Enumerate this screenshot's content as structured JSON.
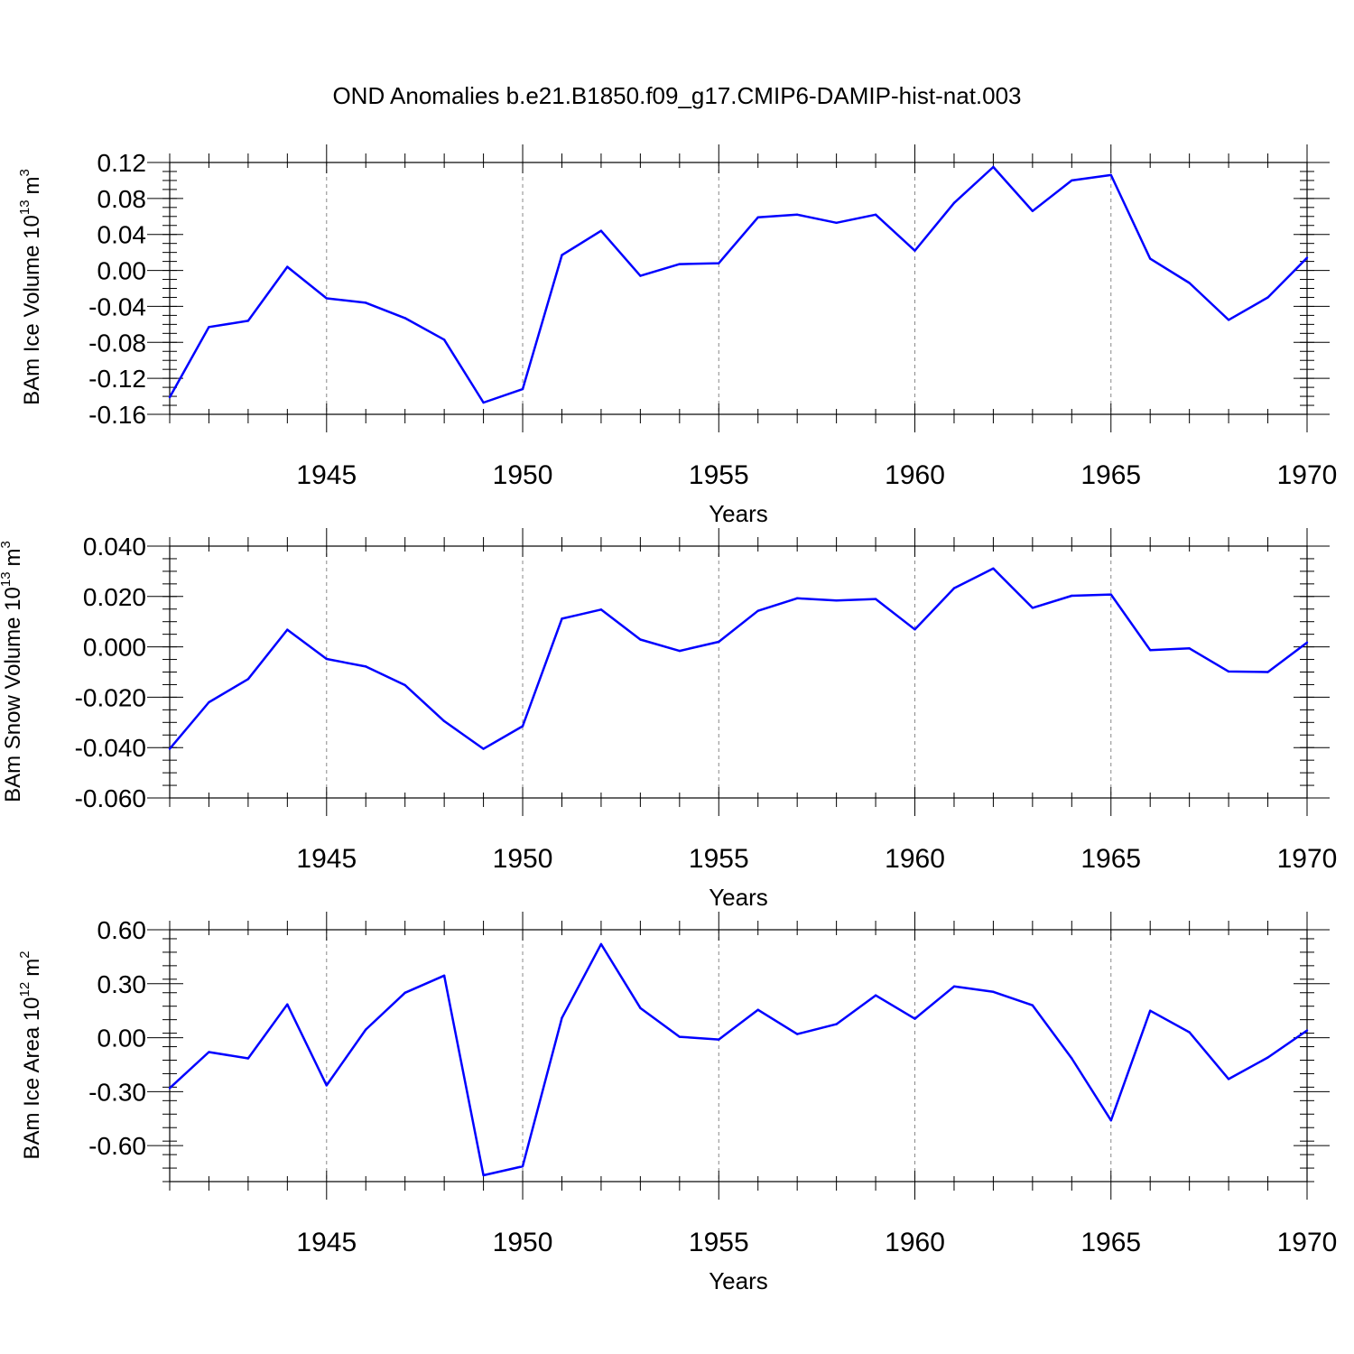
{
  "title": "OND Anomalies b.e21.B1850.f09_g17.CMIP6-DAMIP-hist-nat.003",
  "line_color": "#0000ff",
  "chart_data": [
    {
      "type": "line",
      "ylabel": "BAm Ice Volume 10",
      "ylabel_exponent": "13",
      "ylabel_unit": "m",
      "ylabel_unit_exponent": "3",
      "xlabel": "Years",
      "xlim": [
        1941,
        1970
      ],
      "ylim": [
        -0.16,
        0.12
      ],
      "yticks": [
        "0.12",
        "0.08",
        "0.04",
        "0.00",
        "-0.04",
        "-0.08",
        "-0.12",
        "-0.16"
      ],
      "xticks": [
        "1945",
        "1950",
        "1955",
        "1960",
        "1965",
        "1970"
      ],
      "x": [
        1941,
        1942,
        1943,
        1944,
        1945,
        1946,
        1947,
        1948,
        1949,
        1950,
        1951,
        1952,
        1953,
        1954,
        1955,
        1956,
        1957,
        1958,
        1959,
        1960,
        1961,
        1962,
        1963,
        1964,
        1965,
        1966,
        1967,
        1968,
        1969,
        1970
      ],
      "values": [
        -0.141,
        -0.063,
        -0.056,
        0.004,
        -0.031,
        -0.036,
        -0.053,
        -0.077,
        -0.147,
        -0.132,
        0.017,
        0.044,
        -0.006,
        0.007,
        0.008,
        0.059,
        0.062,
        0.053,
        0.062,
        0.022,
        0.075,
        0.115,
        0.066,
        0.1,
        0.106,
        0.013,
        -0.014,
        -0.055,
        -0.03,
        0.014
      ]
    },
    {
      "type": "line",
      "ylabel": "BAm Snow Volume 10",
      "ylabel_exponent": "13",
      "ylabel_unit": "m",
      "ylabel_unit_exponent": "3",
      "xlabel": "Years",
      "xlim": [
        1941,
        1970
      ],
      "ylim": [
        -0.06,
        0.04
      ],
      "yticks": [
        "0.040",
        "0.020",
        "0.000",
        "-0.020",
        "-0.040",
        "-0.060"
      ],
      "xticks": [
        "1945",
        "1950",
        "1955",
        "1960",
        "1965",
        "1970"
      ],
      "x": [
        1941,
        1942,
        1943,
        1944,
        1945,
        1946,
        1947,
        1948,
        1949,
        1950,
        1951,
        1952,
        1953,
        1954,
        1955,
        1956,
        1957,
        1958,
        1959,
        1960,
        1961,
        1962,
        1963,
        1964,
        1965,
        1966,
        1967,
        1968,
        1969,
        1970
      ],
      "values": [
        -0.0405,
        -0.022,
        -0.0128,
        0.0068,
        -0.0048,
        -0.0078,
        -0.0152,
        -0.0295,
        -0.0405,
        -0.0315,
        0.0112,
        0.0148,
        0.0029,
        -0.0016,
        0.002,
        0.0143,
        0.0193,
        0.0184,
        0.019,
        0.0069,
        0.0233,
        0.0311,
        0.0155,
        0.0203,
        0.0208,
        -0.0013,
        -0.0006,
        -0.0098,
        -0.01,
        0.0017
      ]
    },
    {
      "type": "line",
      "ylabel": "BAm Ice Area 10",
      "ylabel_exponent": "12",
      "ylabel_unit": "m",
      "ylabel_unit_exponent": "2",
      "xlabel": "Years",
      "xlim": [
        1941,
        1970
      ],
      "ylim": [
        -0.8,
        0.6
      ],
      "yticks": [
        "0.60",
        "0.30",
        "0.00",
        "-0.30",
        "-0.60"
      ],
      "xticks": [
        "1945",
        "1950",
        "1955",
        "1960",
        "1965",
        "1970"
      ],
      "x": [
        1941,
        1942,
        1943,
        1944,
        1945,
        1946,
        1947,
        1948,
        1949,
        1950,
        1951,
        1952,
        1953,
        1954,
        1955,
        1956,
        1957,
        1958,
        1959,
        1960,
        1961,
        1962,
        1963,
        1964,
        1965,
        1966,
        1967,
        1968,
        1969,
        1970
      ],
      "values": [
        -0.28,
        -0.08,
        -0.115,
        0.185,
        -0.265,
        0.045,
        0.25,
        0.345,
        -0.765,
        -0.715,
        0.11,
        0.52,
        0.165,
        0.005,
        -0.01,
        0.155,
        0.02,
        0.075,
        0.235,
        0.105,
        0.285,
        0.255,
        0.18,
        -0.115,
        -0.46,
        0.15,
        0.03,
        -0.23,
        -0.11,
        0.04
      ]
    }
  ]
}
